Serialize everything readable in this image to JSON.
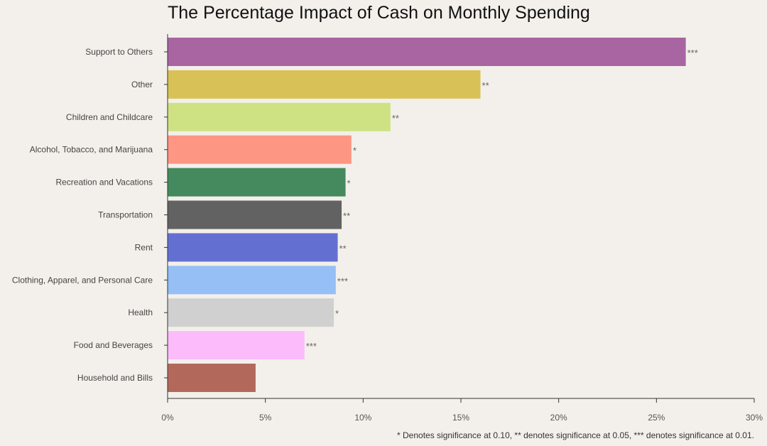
{
  "chart_data": {
    "type": "bar",
    "orientation": "horizontal",
    "title": "The Percentage Impact of Cash on Monthly Spending",
    "xlabel": "",
    "ylabel": "",
    "xlim": [
      0,
      30
    ],
    "xticks": [
      "0%",
      "5%",
      "10%",
      "15%",
      "20%",
      "25%",
      "30%"
    ],
    "xtick_values": [
      0,
      5,
      10,
      15,
      20,
      25,
      30
    ],
    "categories": [
      "Support to Others",
      "Other",
      "Children and Childcare",
      "Alcohol, Tobacco, and Marijuana",
      "Recreation and Vacations",
      "Transportation",
      "Rent",
      "Clothing, Apparel, and Personal Care",
      "Health",
      "Food and Beverages",
      "Household and Bills"
    ],
    "values": [
      26.5,
      16.0,
      11.4,
      9.4,
      9.1,
      8.9,
      8.7,
      8.6,
      8.5,
      7.0,
      4.5
    ],
    "significance": [
      "***",
      "**",
      "**",
      "*",
      "*",
      "**",
      "**",
      "***",
      "*",
      "***",
      ""
    ],
    "colors": [
      "#a865a2",
      "#d8c257",
      "#cfe283",
      "#fe9684",
      "#448a5e",
      "#626262",
      "#6470d1",
      "#95bff5",
      "#d0d0d0",
      "#fcbcfb",
      "#b2695c"
    ],
    "footnote": "* Denotes significance at 0.10, ** denotes significance at 0.05, *** denotes significance at 0.01."
  }
}
